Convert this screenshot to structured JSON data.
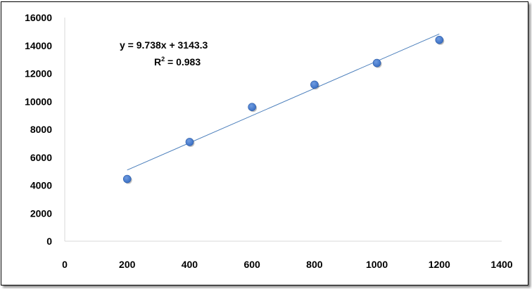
{
  "chart_data": {
    "type": "scatter",
    "title": "",
    "xlabel": "",
    "ylabel": "",
    "x": [
      200,
      400,
      600,
      800,
      1000,
      1200
    ],
    "y": [
      4450,
      7100,
      9600,
      11200,
      12750,
      14400
    ],
    "xlim": [
      0,
      1400
    ],
    "ylim": [
      0,
      16000
    ],
    "x_ticks": [
      "0",
      "200",
      "400",
      "600",
      "800",
      "1000",
      "1200",
      "1400"
    ],
    "y_ticks": [
      "0",
      "2000",
      "4000",
      "6000",
      "8000",
      "10000",
      "12000",
      "14000",
      "16000"
    ],
    "grid": false,
    "legend": "none",
    "trendline": {
      "type": "linear",
      "slope": 9.738,
      "intercept": 3143.3,
      "x_range": [
        200,
        1200
      ],
      "color": "#4a7ebb"
    },
    "annotations": {
      "equation": "y = 9.738x + 3143.3",
      "r_squared_prefix": "R",
      "r_squared_sup": "2",
      "r_squared_suffix": " = 0.983"
    },
    "marker_color": "#3a6fc4",
    "axis_color": "#d9d9d9"
  }
}
